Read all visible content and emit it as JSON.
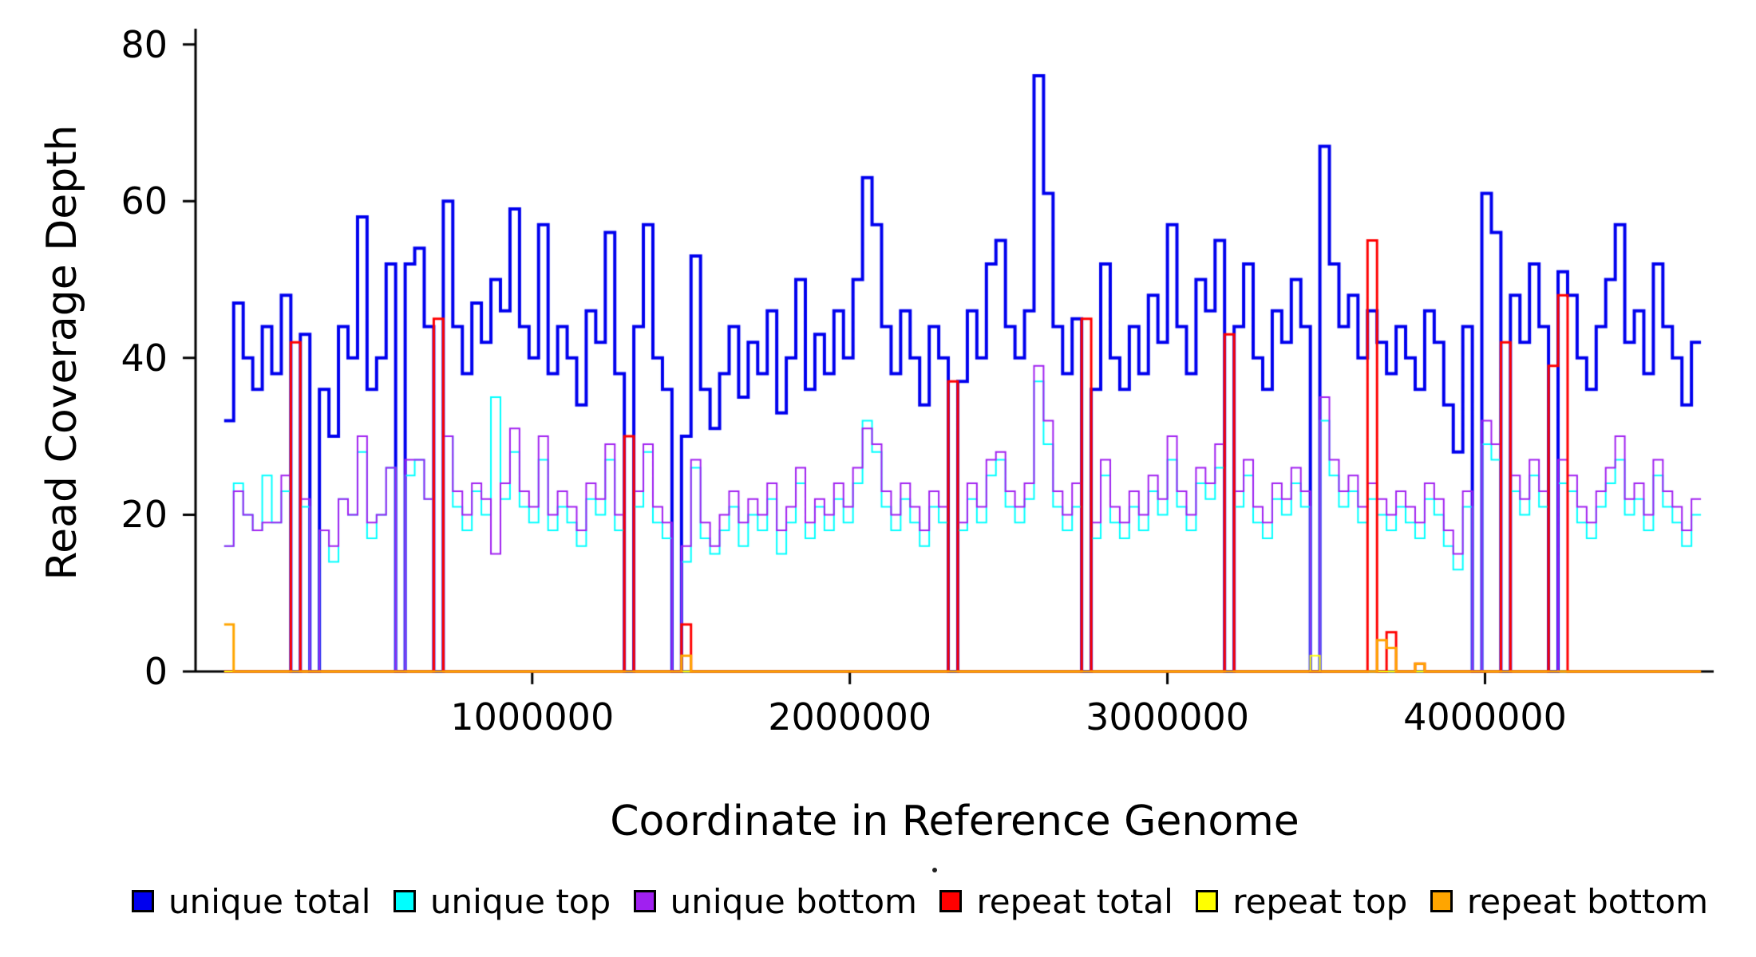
{
  "chart_data": {
    "type": "line",
    "style": "step",
    "title": "",
    "xlabel": "Coordinate in Reference Genome",
    "ylabel": "Read Coverage Depth",
    "xlim": [
      -60000,
      4720000
    ],
    "ylim": [
      0,
      82
    ],
    "grid": false,
    "legend_position": "bottom",
    "x_ticks": [
      {
        "value": 1000000,
        "label": "1000000"
      },
      {
        "value": 2000000,
        "label": "2000000"
      },
      {
        "value": 3000000,
        "label": "3000000"
      },
      {
        "value": 4000000,
        "label": "4000000"
      }
    ],
    "y_ticks": [
      {
        "value": 0,
        "label": "0"
      },
      {
        "value": 20,
        "label": "20"
      },
      {
        "value": 40,
        "label": "40"
      },
      {
        "value": 60,
        "label": "60"
      },
      {
        "value": 80,
        "label": "80"
      }
    ],
    "x_start": 30000,
    "x_step": 30000,
    "n_points": 155,
    "series": [
      {
        "name": "unique total",
        "color": "#0000EE",
        "line_width": 4,
        "values": [
          32,
          47,
          40,
          36,
          44,
          38,
          48,
          0,
          43,
          0,
          36,
          30,
          44,
          40,
          58,
          36,
          40,
          52,
          0,
          52,
          54,
          44,
          0,
          60,
          44,
          38,
          47,
          42,
          50,
          46,
          59,
          44,
          40,
          57,
          38,
          44,
          40,
          34,
          46,
          42,
          56,
          38,
          0,
          44,
          57,
          40,
          36,
          0,
          30,
          53,
          36,
          31,
          38,
          44,
          35,
          42,
          38,
          46,
          33,
          40,
          50,
          36,
          43,
          38,
          46,
          40,
          50,
          63,
          57,
          44,
          38,
          46,
          40,
          34,
          44,
          40,
          0,
          37,
          46,
          40,
          52,
          55,
          44,
          40,
          46,
          76,
          61,
          44,
          38,
          45,
          0,
          36,
          52,
          40,
          36,
          44,
          38,
          48,
          42,
          57,
          44,
          38,
          50,
          46,
          55,
          0,
          44,
          52,
          40,
          36,
          46,
          42,
          50,
          44,
          0,
          67,
          52,
          44,
          48,
          40,
          46,
          42,
          38,
          44,
          40,
          36,
          46,
          42,
          34,
          28,
          44,
          0,
          61,
          56,
          0,
          48,
          42,
          52,
          44,
          0,
          51,
          48,
          40,
          36,
          44,
          50,
          57,
          42,
          46,
          38,
          52,
          44,
          40,
          34,
          42
        ]
      },
      {
        "name": "unique top",
        "color": "#00FFFF",
        "line_width": 2,
        "values": [
          16,
          24,
          20,
          18,
          25,
          19,
          23,
          0,
          21,
          0,
          18,
          14,
          22,
          20,
          28,
          17,
          20,
          26,
          0,
          25,
          27,
          22,
          0,
          30,
          21,
          18,
          23,
          20,
          35,
          22,
          28,
          21,
          19,
          27,
          18,
          21,
          19,
          16,
          22,
          20,
          27,
          18,
          0,
          21,
          28,
          19,
          17,
          0,
          14,
          26,
          17,
          15,
          18,
          21,
          16,
          20,
          18,
          22,
          15,
          19,
          24,
          17,
          21,
          18,
          22,
          19,
          24,
          32,
          28,
          21,
          18,
          22,
          19,
          16,
          21,
          19,
          0,
          18,
          22,
          19,
          25,
          27,
          21,
          19,
          22,
          37,
          29,
          21,
          18,
          21,
          0,
          17,
          25,
          19,
          17,
          21,
          18,
          23,
          20,
          27,
          21,
          18,
          24,
          22,
          26,
          0,
          21,
          25,
          19,
          17,
          22,
          20,
          24,
          21,
          0,
          32,
          25,
          21,
          23,
          19,
          22,
          20,
          18,
          21,
          19,
          17,
          22,
          20,
          16,
          13,
          21,
          0,
          29,
          27,
          0,
          23,
          20,
          25,
          21,
          0,
          24,
          23,
          19,
          17,
          21,
          24,
          27,
          20,
          22,
          18,
          25,
          21,
          19,
          16,
          20
        ]
      },
      {
        "name": "unique bottom",
        "color": "#A020F0",
        "line_width": 2,
        "values": [
          16,
          23,
          20,
          18,
          19,
          19,
          25,
          0,
          22,
          0,
          18,
          16,
          22,
          20,
          30,
          19,
          20,
          26,
          0,
          27,
          27,
          22,
          0,
          30,
          23,
          20,
          24,
          22,
          15,
          24,
          31,
          23,
          21,
          30,
          20,
          23,
          21,
          18,
          24,
          22,
          29,
          20,
          0,
          23,
          29,
          21,
          19,
          0,
          16,
          27,
          19,
          16,
          20,
          23,
          19,
          22,
          20,
          24,
          18,
          21,
          26,
          19,
          22,
          20,
          24,
          21,
          26,
          31,
          29,
          23,
          20,
          24,
          21,
          18,
          23,
          21,
          0,
          19,
          24,
          21,
          27,
          28,
          23,
          21,
          24,
          39,
          32,
          23,
          20,
          24,
          0,
          19,
          27,
          21,
          19,
          23,
          20,
          25,
          22,
          30,
          23,
          20,
          26,
          24,
          29,
          0,
          23,
          27,
          21,
          19,
          24,
          22,
          26,
          23,
          0,
          35,
          27,
          23,
          25,
          21,
          24,
          22,
          20,
          23,
          21,
          19,
          24,
          22,
          18,
          15,
          23,
          0,
          32,
          29,
          0,
          25,
          22,
          27,
          23,
          0,
          27,
          25,
          21,
          19,
          23,
          26,
          30,
          22,
          24,
          20,
          27,
          23,
          21,
          18,
          22
        ]
      },
      {
        "name": "repeat total",
        "color": "#FF0000",
        "line_width": 3,
        "sparse": true,
        "default": 0,
        "points": {
          "7": 42,
          "22": 45,
          "42": 30,
          "48": 6,
          "76": 37,
          "90": 45,
          "105": 43,
          "120": 55,
          "122": 5,
          "125": 1,
          "134": 42,
          "139": 39,
          "140": 48
        }
      },
      {
        "name": "repeat top",
        "color": "#FFFF00",
        "line_width": 2,
        "sparse": true,
        "default": 0,
        "points": {
          "114": 2
        }
      },
      {
        "name": "repeat bottom",
        "color": "#FFA500",
        "line_width": 3,
        "sparse": true,
        "default": 0,
        "points": {
          "0": 6,
          "48": 2,
          "121": 4,
          "122": 3,
          "125": 1
        }
      }
    ]
  }
}
